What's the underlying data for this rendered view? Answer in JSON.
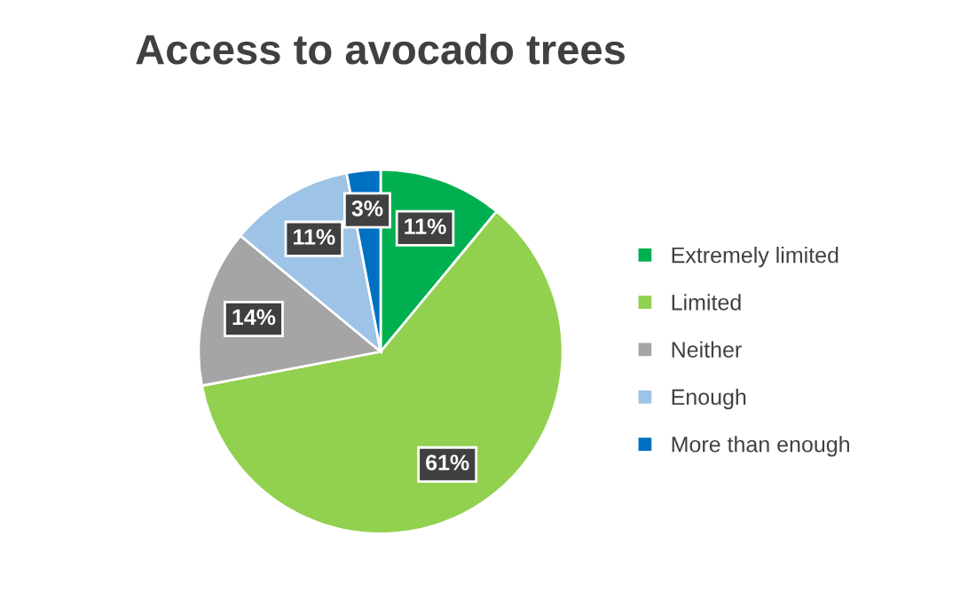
{
  "chart_data": {
    "type": "pie",
    "title": "Access to avocado trees",
    "categories": [
      "Extremely limited",
      "Limited",
      "Neither",
      "Enough",
      "More than enough"
    ],
    "values": [
      11,
      61,
      14,
      11,
      3
    ],
    "colors": [
      "#00b050",
      "#92d050",
      "#a5a5a5",
      "#9dc3e6",
      "#0070c0"
    ],
    "value_labels": [
      "11%",
      "61%",
      "14%",
      "11%",
      "3%"
    ],
    "legend": "right"
  }
}
